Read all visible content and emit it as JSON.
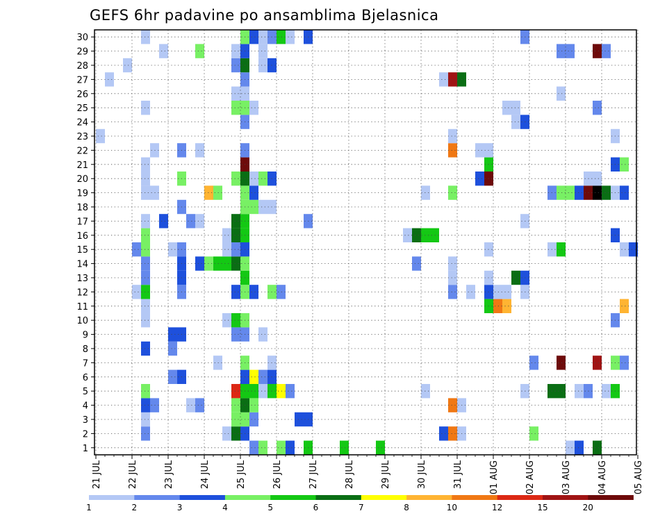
{
  "chart_data": {
    "type": "heatmap",
    "title": "GEFS 6hr padavine po ansamblima Bjelasnica",
    "xlabel": "",
    "ylabel": "",
    "y_categories": [
      "1",
      "2",
      "3",
      "4",
      "5",
      "6",
      "7",
      "8",
      "9",
      "10",
      "11",
      "12",
      "13",
      "14",
      "15",
      "16",
      "17",
      "18",
      "19",
      "20",
      "21",
      "22",
      "23",
      "24",
      "25",
      "26",
      "27",
      "28",
      "29",
      "30"
    ],
    "x_ticks": [
      "21 JUL",
      "22 JUL",
      "23 JUL",
      "24 JUL",
      "25 JUL",
      "26 JUL",
      "27 JUL",
      "28 JUL",
      "29 JUL",
      "30 JUL",
      "31 JUL",
      "01 AUG",
      "02 AUG",
      "03 AUG",
      "04 AUG",
      "05 AUG"
    ],
    "steps_per_day": 4,
    "grid": true,
    "legend": {
      "placement": "bottom",
      "labels": [
        "1",
        "2",
        "3",
        "4",
        "5",
        "6",
        "7",
        "8",
        "10",
        "12",
        "15",
        "20"
      ],
      "colors": [
        "#b4c8f5",
        "#6488ec",
        "#1e50dc",
        "#78f064",
        "#14c814",
        "#0a6e14",
        "#ffff00",
        "#ffb432",
        "#f07814",
        "#dc2814",
        "#a01414",
        "#6e0a0a"
      ]
    },
    "cells": [
      {
        "m": 1,
        "t": [
          [
            17,
            2
          ],
          [
            18,
            4
          ],
          [
            20,
            4
          ],
          [
            21,
            3
          ],
          [
            23,
            5
          ],
          [
            27,
            5
          ],
          [
            31,
            5
          ],
          [
            52,
            1
          ],
          [
            53,
            3
          ],
          [
            55,
            6
          ]
        ]
      },
      {
        "m": 2,
        "t": [
          [
            5,
            2
          ],
          [
            14,
            1
          ],
          [
            15,
            6
          ],
          [
            16,
            3
          ],
          [
            38,
            3
          ],
          [
            39,
            9
          ],
          [
            40,
            1
          ],
          [
            48,
            4
          ]
        ]
      },
      {
        "m": 3,
        "t": [
          [
            5,
            1
          ],
          [
            15,
            4
          ],
          [
            16,
            4
          ],
          [
            17,
            2
          ],
          [
            22,
            3
          ],
          [
            23,
            3
          ]
        ]
      },
      {
        "m": 4,
        "t": [
          [
            5,
            3
          ],
          [
            6,
            2
          ],
          [
            10,
            1
          ],
          [
            11,
            2
          ],
          [
            15,
            4
          ],
          [
            16,
            6
          ],
          [
            17,
            4
          ],
          [
            39,
            9
          ],
          [
            40,
            1
          ]
        ]
      },
      {
        "m": 5,
        "t": [
          [
            5,
            4
          ],
          [
            15,
            10
          ],
          [
            16,
            5
          ],
          [
            17,
            5
          ],
          [
            18,
            1
          ],
          [
            19,
            5
          ],
          [
            20,
            7
          ],
          [
            21,
            2
          ],
          [
            36,
            1
          ],
          [
            47,
            1
          ],
          [
            50,
            6
          ],
          [
            51,
            6
          ],
          [
            53,
            1
          ],
          [
            54,
            2
          ],
          [
            56,
            1
          ],
          [
            57,
            5
          ]
        ]
      },
      {
        "m": 6,
        "t": [
          [
            8,
            2
          ],
          [
            9,
            3
          ],
          [
            16,
            3
          ],
          [
            17,
            7
          ],
          [
            18,
            2
          ],
          [
            19,
            3
          ]
        ]
      },
      {
        "m": 7,
        "t": [
          [
            13,
            1
          ],
          [
            16,
            4
          ],
          [
            19,
            1
          ],
          [
            48,
            2
          ],
          [
            51,
            12
          ],
          [
            55,
            11
          ],
          [
            57,
            4
          ],
          [
            58,
            2
          ]
        ]
      },
      {
        "m": 8,
        "t": [
          [
            5,
            3
          ],
          [
            8,
            2
          ]
        ]
      },
      {
        "m": 9,
        "t": [
          [
            8,
            3
          ],
          [
            9,
            3
          ],
          [
            15,
            2
          ],
          [
            16,
            2
          ],
          [
            18,
            1
          ]
        ]
      },
      {
        "m": 10,
        "t": [
          [
            5,
            1
          ],
          [
            14,
            1
          ],
          [
            15,
            5
          ],
          [
            16,
            4
          ],
          [
            57,
            2
          ]
        ]
      },
      {
        "m": 11,
        "t": [
          [
            5,
            1
          ],
          [
            43,
            5
          ],
          [
            44,
            9
          ],
          [
            45,
            8
          ],
          [
            58,
            8
          ]
        ]
      },
      {
        "m": 12,
        "t": [
          [
            4,
            1
          ],
          [
            5,
            5
          ],
          [
            9,
            2
          ],
          [
            15,
            3
          ],
          [
            16,
            4
          ],
          [
            17,
            3
          ],
          [
            19,
            4
          ],
          [
            20,
            2
          ],
          [
            39,
            2
          ],
          [
            41,
            1
          ],
          [
            43,
            3
          ],
          [
            44,
            1
          ],
          [
            45,
            1
          ],
          [
            47,
            1
          ]
        ]
      },
      {
        "m": 13,
        "t": [
          [
            5,
            2
          ],
          [
            9,
            3
          ],
          [
            16,
            5
          ],
          [
            39,
            1
          ],
          [
            43,
            1
          ],
          [
            46,
            6
          ],
          [
            47,
            3
          ]
        ]
      },
      {
        "m": 14,
        "t": [
          [
            5,
            2
          ],
          [
            9,
            3
          ],
          [
            11,
            3
          ],
          [
            12,
            4
          ],
          [
            13,
            5
          ],
          [
            14,
            5
          ],
          [
            15,
            6
          ],
          [
            16,
            4
          ],
          [
            35,
            2
          ],
          [
            39,
            1
          ]
        ]
      },
      {
        "m": 15,
        "t": [
          [
            4,
            2
          ],
          [
            5,
            4
          ],
          [
            8,
            1
          ],
          [
            9,
            2
          ],
          [
            14,
            1
          ],
          [
            15,
            2
          ],
          [
            16,
            3
          ],
          [
            43,
            1
          ],
          [
            50,
            1
          ],
          [
            51,
            5
          ],
          [
            58,
            1
          ],
          [
            59,
            3
          ]
        ]
      },
      {
        "m": 16,
        "t": [
          [
            5,
            4
          ],
          [
            14,
            1
          ],
          [
            15,
            6
          ],
          [
            16,
            5
          ],
          [
            34,
            1
          ],
          [
            35,
            6
          ],
          [
            36,
            5
          ],
          [
            37,
            5
          ],
          [
            57,
            3
          ]
        ]
      },
      {
        "m": 17,
        "t": [
          [
            5,
            1
          ],
          [
            7,
            3
          ],
          [
            10,
            2
          ],
          [
            11,
            1
          ],
          [
            15,
            6
          ],
          [
            16,
            5
          ],
          [
            23,
            2
          ],
          [
            47,
            1
          ]
        ]
      },
      {
        "m": 18,
        "t": [
          [
            9,
            2
          ],
          [
            16,
            4
          ],
          [
            17,
            4
          ],
          [
            18,
            1
          ],
          [
            19,
            1
          ]
        ]
      },
      {
        "m": 19,
        "t": [
          [
            5,
            1
          ],
          [
            6,
            1
          ],
          [
            12,
            8
          ],
          [
            13,
            4
          ],
          [
            16,
            4
          ],
          [
            17,
            3
          ],
          [
            36,
            1
          ],
          [
            39,
            4
          ],
          [
            50,
            2
          ],
          [
            51,
            4
          ],
          [
            52,
            4
          ],
          [
            53,
            3
          ],
          [
            54,
            12
          ],
          [
            55,
            13
          ],
          [
            56,
            6
          ],
          [
            57,
            1
          ],
          [
            58,
            3
          ]
        ]
      },
      {
        "m": 20,
        "t": [
          [
            5,
            1
          ],
          [
            9,
            4
          ],
          [
            15,
            4
          ],
          [
            16,
            6
          ],
          [
            17,
            1
          ],
          [
            18,
            4
          ],
          [
            19,
            3
          ],
          [
            42,
            3
          ],
          [
            43,
            12
          ],
          [
            54,
            1
          ],
          [
            55,
            1
          ]
        ]
      },
      {
        "m": 21,
        "t": [
          [
            5,
            1
          ],
          [
            16,
            12
          ],
          [
            43,
            5
          ],
          [
            57,
            3
          ],
          [
            58,
            4
          ]
        ]
      },
      {
        "m": 22,
        "t": [
          [
            6,
            1
          ],
          [
            9,
            2
          ],
          [
            11,
            1
          ],
          [
            16,
            2
          ],
          [
            39,
            9
          ],
          [
            42,
            1
          ],
          [
            43,
            1
          ]
        ]
      },
      {
        "m": 23,
        "t": [
          [
            0,
            1
          ],
          [
            39,
            1
          ],
          [
            57,
            1
          ]
        ]
      },
      {
        "m": 24,
        "t": [
          [
            16,
            2
          ],
          [
            46,
            1
          ],
          [
            47,
            3
          ]
        ]
      },
      {
        "m": 25,
        "t": [
          [
            5,
            1
          ],
          [
            15,
            4
          ],
          [
            16,
            4
          ],
          [
            17,
            1
          ],
          [
            45,
            1
          ],
          [
            46,
            1
          ],
          [
            55,
            2
          ]
        ]
      },
      {
        "m": 26,
        "t": [
          [
            15,
            1
          ],
          [
            16,
            1
          ],
          [
            51,
            1
          ]
        ]
      },
      {
        "m": 27,
        "t": [
          [
            1,
            1
          ],
          [
            16,
            2
          ],
          [
            38,
            1
          ],
          [
            39,
            11
          ],
          [
            40,
            6
          ]
        ]
      },
      {
        "m": 28,
        "t": [
          [
            3,
            1
          ],
          [
            15,
            2
          ],
          [
            16,
            6
          ],
          [
            18,
            1
          ],
          [
            19,
            3
          ]
        ]
      },
      {
        "m": 29,
        "t": [
          [
            7,
            1
          ],
          [
            11,
            4
          ],
          [
            15,
            1
          ],
          [
            16,
            3
          ],
          [
            18,
            1
          ],
          [
            51,
            2
          ],
          [
            52,
            2
          ],
          [
            55,
            12
          ],
          [
            56,
            2
          ]
        ]
      },
      {
        "m": 30,
        "t": [
          [
            5,
            1
          ],
          [
            16,
            4
          ],
          [
            17,
            3
          ],
          [
            18,
            1
          ],
          [
            19,
            2
          ],
          [
            20,
            5
          ],
          [
            21,
            1
          ],
          [
            23,
            3
          ],
          [
            47,
            2
          ]
        ]
      }
    ]
  }
}
